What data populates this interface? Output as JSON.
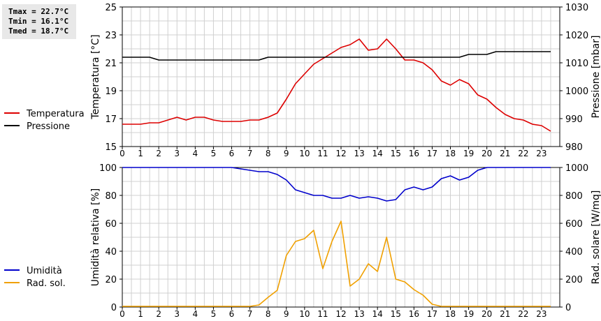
{
  "stats": {
    "tmax": "Tmax = 22.7°C",
    "tmin": "Tmin = 16.1°C",
    "tmed": "Tmed = 18.7°C"
  },
  "colors": {
    "temperature": "#dd0000",
    "pressure": "#000000",
    "humidity": "#0000cc",
    "solar": "#f0a000",
    "grid": "#d0d0d0"
  },
  "chart_data": [
    {
      "type": "line",
      "xlabel": "",
      "ylabel": "Temperatura [°C]",
      "y2label": "Pressione [mbar]",
      "xlim": [
        0,
        24
      ],
      "ylim": [
        15,
        25
      ],
      "y2lim": [
        980,
        1030
      ],
      "x_ticks": [
        0,
        1,
        2,
        3,
        4,
        5,
        6,
        7,
        8,
        9,
        10,
        11,
        12,
        13,
        14,
        15,
        16,
        17,
        18,
        19,
        20,
        21,
        22,
        23
      ],
      "y_ticks": [
        15,
        17,
        19,
        21,
        23,
        25
      ],
      "y2_ticks": [
        980,
        990,
        1000,
        1010,
        1020,
        1030
      ],
      "grid": true,
      "legend": "left",
      "series": [
        {
          "name": "Temperatura",
          "axis": "left",
          "x": [
            0,
            0.5,
            1,
            1.5,
            2,
            2.5,
            3,
            3.5,
            4,
            4.5,
            5,
            5.5,
            6,
            6.5,
            7,
            7.5,
            8,
            8.5,
            9,
            9.5,
            10,
            10.5,
            11,
            11.5,
            12,
            12.5,
            13,
            13.5,
            14,
            14.5,
            15,
            15.5,
            16,
            16.5,
            17,
            17.5,
            18,
            18.5,
            19,
            19.5,
            20,
            20.5,
            21,
            21.5,
            22,
            22.5,
            23,
            23.5
          ],
          "values": [
            16.6,
            16.6,
            16.6,
            16.7,
            16.7,
            16.9,
            17.1,
            16.9,
            17.1,
            17.1,
            16.9,
            16.8,
            16.8,
            16.8,
            16.9,
            16.9,
            17.1,
            17.4,
            18.4,
            19.5,
            20.2,
            20.9,
            21.3,
            21.7,
            22.1,
            22.3,
            22.7,
            21.9,
            22.0,
            22.7,
            22.0,
            21.2,
            21.2,
            21.0,
            20.5,
            19.7,
            19.4,
            19.8,
            19.5,
            18.7,
            18.4,
            17.8,
            17.3,
            17.0,
            16.9,
            16.6,
            16.5,
            16.1
          ]
        },
        {
          "name": "Pressione",
          "axis": "right",
          "x": [
            0,
            1,
            1.5,
            2,
            3,
            4,
            5,
            6,
            7,
            7.5,
            8,
            9,
            10,
            11,
            12,
            13,
            14,
            15,
            16,
            17,
            18,
            18.5,
            19,
            20,
            20.5,
            21,
            22,
            23,
            23.5
          ],
          "values": [
            1012,
            1012,
            1012,
            1011,
            1011,
            1011,
            1011,
            1011,
            1011,
            1011,
            1012,
            1012,
            1012,
            1012,
            1012,
            1012,
            1012,
            1012,
            1012,
            1012,
            1012,
            1012,
            1013,
            1013,
            1014,
            1014,
            1014,
            1014,
            1014
          ]
        }
      ]
    },
    {
      "type": "line",
      "xlabel": "",
      "ylabel": "Umidità relativa [%]",
      "y2label": "Rad. solare [W/mq]",
      "xlim": [
        0,
        24
      ],
      "ylim": [
        0,
        100
      ],
      "y2lim": [
        0,
        1000
      ],
      "x_ticks": [
        0,
        1,
        2,
        3,
        4,
        5,
        6,
        7,
        8,
        9,
        10,
        11,
        12,
        13,
        14,
        15,
        16,
        17,
        18,
        19,
        20,
        21,
        22,
        23
      ],
      "y_ticks": [
        0,
        20,
        40,
        60,
        80,
        100
      ],
      "y2_ticks": [
        0,
        200,
        400,
        600,
        800,
        1000
      ],
      "grid": true,
      "legend": "left",
      "series": [
        {
          "name": "Umidità",
          "axis": "left",
          "x": [
            0,
            1,
            2,
            3,
            4,
            5,
            6,
            6.5,
            7,
            7.5,
            8,
            8.5,
            9,
            9.5,
            10,
            10.5,
            11,
            11.5,
            12,
            12.5,
            13,
            13.5,
            14,
            14.5,
            15,
            15.5,
            16,
            16.5,
            17,
            17.5,
            18,
            18.5,
            19,
            19.5,
            20,
            20.5,
            21,
            22,
            23,
            23.5
          ],
          "values": [
            100,
            100,
            100,
            100,
            100,
            100,
            100,
            99,
            98,
            97,
            97,
            95,
            91,
            84,
            82,
            80,
            80,
            78,
            78,
            80,
            78,
            79,
            78,
            76,
            77,
            84,
            86,
            84,
            86,
            92,
            94,
            91,
            93,
            98,
            100,
            100,
            100,
            100,
            100,
            100
          ]
        },
        {
          "name": "Rad. sol.",
          "axis": "right",
          "x": [
            0,
            1,
            2,
            3,
            4,
            5,
            6,
            7,
            7.5,
            8,
            8.5,
            9,
            9.5,
            10,
            10.5,
            11,
            11.5,
            12,
            12.5,
            13,
            13.5,
            14,
            14.5,
            15,
            15.5,
            16,
            16.5,
            17,
            17.5,
            18,
            19,
            20,
            21,
            22,
            23,
            23.5
          ],
          "values": [
            5,
            5,
            5,
            5,
            5,
            5,
            5,
            5,
            15,
            70,
            120,
            370,
            470,
            490,
            550,
            275,
            470,
            615,
            150,
            200,
            310,
            255,
            500,
            200,
            180,
            125,
            85,
            20,
            5,
            5,
            5,
            5,
            5,
            5,
            5,
            5
          ]
        }
      ]
    }
  ]
}
